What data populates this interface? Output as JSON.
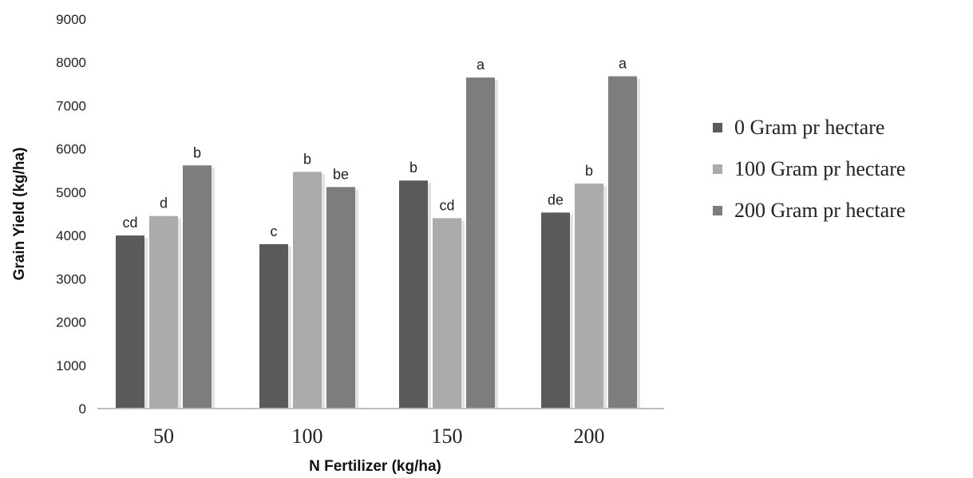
{
  "chart_data": {
    "type": "bar",
    "title": "",
    "xlabel": "N Fertilizer (kg/ha)",
    "ylabel": "Grain Yield (kg/ha)",
    "ylim": [
      0,
      9000
    ],
    "yticks": [
      0,
      1000,
      2000,
      3000,
      4000,
      5000,
      6000,
      7000,
      8000,
      9000
    ],
    "categories": [
      "50",
      "100",
      "150",
      "200"
    ],
    "series": [
      {
        "name": "0 Gram pr hectare",
        "color": "#5a5a5a",
        "values": [
          4000,
          3800,
          5270,
          4530
        ],
        "labels": [
          "cd",
          "c",
          "b",
          "de"
        ]
      },
      {
        "name": "100 Gram pr hectare",
        "color": "#ababab",
        "values": [
          4450,
          5470,
          4400,
          5200
        ],
        "labels": [
          "d",
          "b",
          "cd",
          "b"
        ]
      },
      {
        "name": "200 Gram pr hectare",
        "color": "#7d7d7d",
        "values": [
          5620,
          5120,
          7650,
          7680
        ],
        "labels": [
          "b",
          "be",
          "a",
          "a"
        ]
      }
    ],
    "legend_position": "right",
    "grid": false
  }
}
